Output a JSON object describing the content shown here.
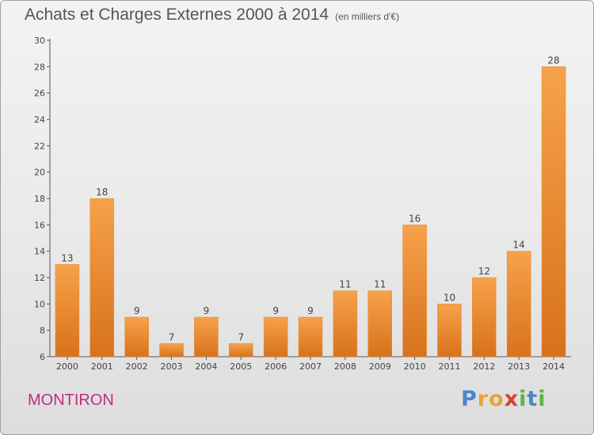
{
  "chart_data": {
    "type": "bar",
    "title": "Achats et Charges Externes 2000 à 2014",
    "subtitle": "(en milliers d'€)",
    "categories": [
      "2000",
      "2001",
      "2002",
      "2003",
      "2004",
      "2005",
      "2006",
      "2007",
      "2008",
      "2009",
      "2010",
      "2011",
      "2012",
      "2013",
      "2014"
    ],
    "values": [
      13,
      18,
      9,
      7,
      9,
      7,
      9,
      9,
      11,
      11,
      16,
      10,
      12,
      14,
      28
    ],
    "ylim": [
      6,
      30
    ],
    "yticks": [
      6,
      8,
      10,
      12,
      14,
      16,
      18,
      20,
      22,
      24,
      26,
      28,
      30
    ],
    "grid": false,
    "bar_color": "#f39a3c",
    "bar_color_dark": "#d96f18"
  },
  "footer": {
    "place": "MONTIRON",
    "brand_letters": [
      "P",
      "r",
      "o",
      "x",
      "i",
      "t",
      "i"
    ],
    "brand_colors": [
      "#4a86c8",
      "#e9a23b",
      "#e9a23b",
      "#d9412a",
      "#5eb448",
      "#4a86c8",
      "#5eb448"
    ]
  }
}
